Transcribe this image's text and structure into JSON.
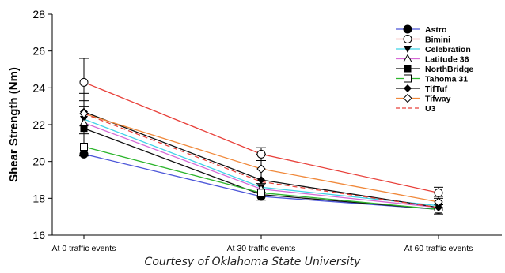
{
  "caption": "Courtesy of Oklahoma State University",
  "chart_data": {
    "type": "line",
    "ylabel": "Shear Strength (Nm)",
    "xlabel": "",
    "categories": [
      "At 0 traffic events",
      "At 30 traffic events",
      "At 60 traffic events"
    ],
    "ylim": [
      16,
      28
    ],
    "yticks": [
      16,
      18,
      20,
      22,
      24,
      26,
      28
    ],
    "legend_position": "top-right",
    "grid": false,
    "series": [
      {
        "name": "Astro",
        "values": [
          20.4,
          18.1,
          17.4
        ],
        "color": "#4b55d8",
        "marker": "filled-circle",
        "dash": false
      },
      {
        "name": "Bimini",
        "values": [
          24.3,
          20.4,
          18.3
        ],
        "color": "#e8403a",
        "marker": "open-circle",
        "dash": false,
        "error": [
          1.3,
          0.35,
          0.3
        ]
      },
      {
        "name": "Celebration",
        "values": [
          22.3,
          18.6,
          17.6
        ],
        "color": "#3fd3e8",
        "marker": "filled-triangle-down",
        "dash": false
      },
      {
        "name": "Latitude 36",
        "values": [
          22.1,
          18.5,
          17.5
        ],
        "color": "#d66ad6",
        "marker": "open-triangle-up",
        "dash": false
      },
      {
        "name": "NorthBridge",
        "values": [
          21.8,
          18.2,
          17.4
        ],
        "color": "#111111",
        "marker": "filled-square",
        "dash": false,
        "error": [
          1.5,
          0.3,
          0.25
        ]
      },
      {
        "name": "Tahoma 31",
        "values": [
          20.8,
          18.3,
          17.4
        ],
        "color": "#2db52d",
        "marker": "open-square",
        "dash": false
      },
      {
        "name": "TifTuf",
        "values": [
          22.7,
          19.0,
          17.5
        ],
        "color": "#111111",
        "marker": "filled-diamond",
        "dash": false
      },
      {
        "name": "Tifway",
        "values": [
          22.6,
          19.6,
          17.8
        ],
        "color": "#f0883a",
        "marker": "open-diamond",
        "dash": false,
        "error": [
          1.1,
          0.8,
          0.3
        ]
      },
      {
        "name": "U3",
        "values": [
          22.6,
          18.9,
          17.5
        ],
        "color": "#e8403a",
        "marker": "none",
        "dash": true
      }
    ]
  }
}
